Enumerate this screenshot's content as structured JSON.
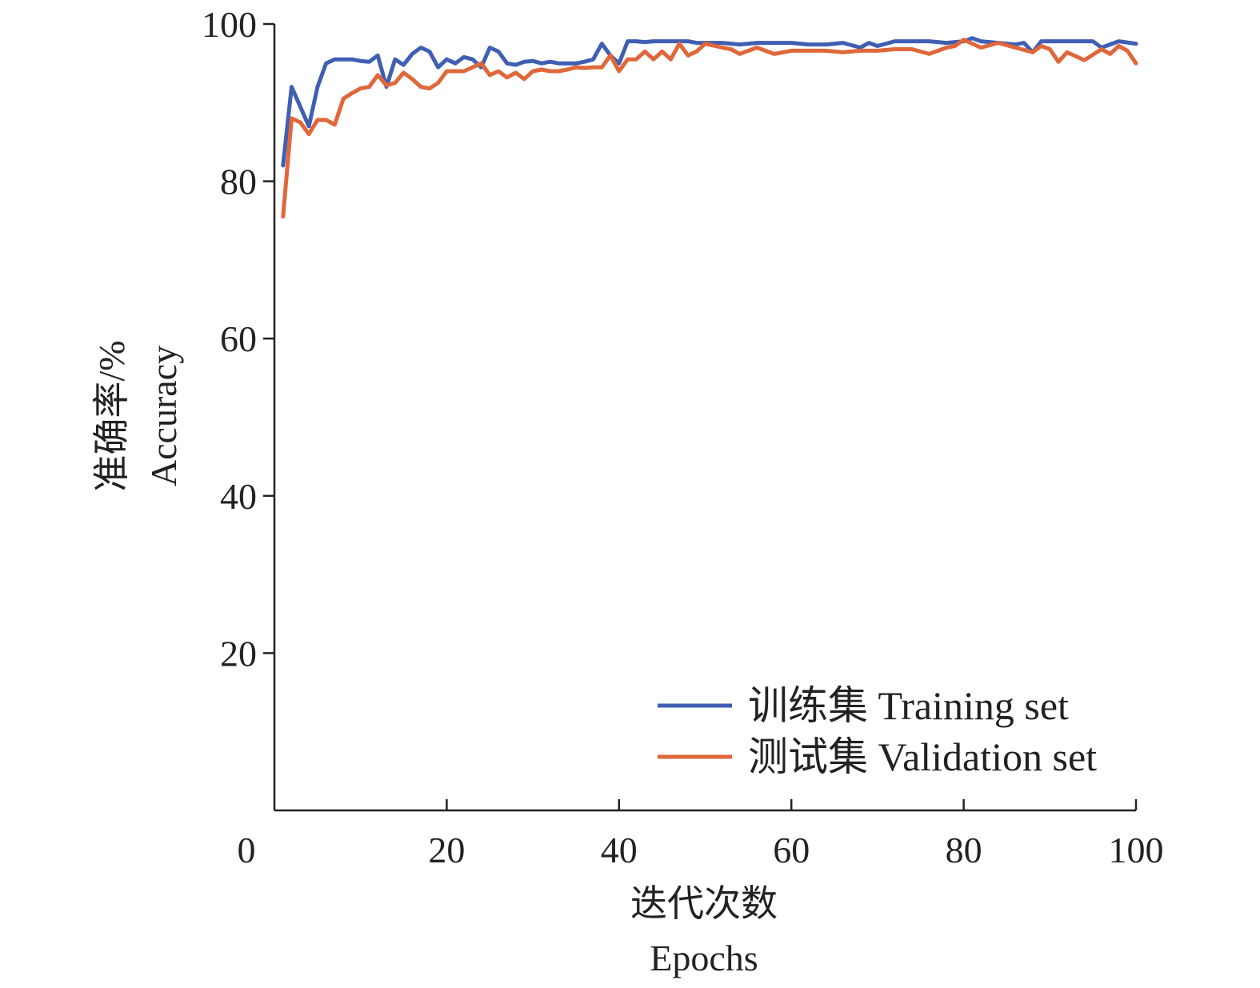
{
  "chart_data": {
    "type": "line",
    "title": "",
    "xlabel": [
      "迭代次数",
      "Epochs"
    ],
    "ylabel": [
      "准确率/%",
      "Accuracy"
    ],
    "xlim": [
      0,
      100
    ],
    "ylim": [
      0,
      100
    ],
    "xticks": [
      "0",
      "20",
      "40",
      "60",
      "80",
      "100"
    ],
    "yticks": [
      "20",
      "40",
      "60",
      "80",
      "100"
    ],
    "grid": false,
    "legend_position": "bottom-right",
    "series": [
      {
        "name": "训练集 Training set",
        "color": "#3f5fb3",
        "x": [
          1,
          2,
          3,
          4,
          5,
          6,
          7,
          8,
          9,
          10,
          11,
          12,
          13,
          14,
          15,
          16,
          17,
          18,
          19,
          20,
          21,
          22,
          23,
          24,
          25,
          26,
          27,
          28,
          29,
          30,
          31,
          32,
          33,
          34,
          35,
          36,
          37,
          38,
          39,
          40,
          41,
          42,
          43,
          44,
          45,
          46,
          47,
          48,
          49,
          50,
          52,
          54,
          56,
          58,
          60,
          62,
          64,
          66,
          68,
          69,
          70,
          72,
          74,
          76,
          78,
          80,
          81,
          82,
          84,
          86,
          87,
          88,
          89,
          90,
          92,
          94,
          95,
          96,
          98,
          100
        ],
        "values": [
          82,
          92,
          89.5,
          87,
          92,
          95,
          95.5,
          95.5,
          95.5,
          95.3,
          95.2,
          96,
          92,
          95.5,
          94.8,
          96.2,
          97,
          96.5,
          94.5,
          95.5,
          95,
          95.8,
          95.5,
          94.5,
          97,
          96.5,
          95,
          94.8,
          95.2,
          95.3,
          95,
          95.2,
          95,
          95,
          95,
          95.2,
          95.5,
          97.5,
          96,
          95,
          97.8,
          97.8,
          97.7,
          97.8,
          97.8,
          97.8,
          97.8,
          97.8,
          97.6,
          97.6,
          97.6,
          97.4,
          97.6,
          97.6,
          97.6,
          97.4,
          97.4,
          97.6,
          97.0,
          97.6,
          97.2,
          97.8,
          97.8,
          97.8,
          97.6,
          97.8,
          98.2,
          97.8,
          97.6,
          97.4,
          97.6,
          96.4,
          97.8,
          97.8,
          97.8,
          97.8,
          97.8,
          97.0,
          97.8,
          97.5
        ]
      },
      {
        "name": "测试集 Validation set",
        "color": "#e0673a",
        "x": [
          1,
          2,
          3,
          4,
          5,
          6,
          7,
          8,
          9,
          10,
          11,
          12,
          13,
          14,
          15,
          16,
          17,
          18,
          19,
          20,
          21,
          22,
          23,
          24,
          25,
          26,
          27,
          28,
          29,
          30,
          31,
          32,
          33,
          34,
          35,
          36,
          37,
          38,
          39,
          40,
          41,
          42,
          43,
          44,
          45,
          46,
          47,
          48,
          49,
          50,
          52,
          53,
          54,
          56,
          58,
          60,
          62,
          64,
          66,
          68,
          70,
          72,
          74,
          76,
          78,
          79,
          80,
          82,
          84,
          86,
          88,
          89,
          90,
          91,
          92,
          94,
          96,
          97,
          98,
          99,
          100
        ],
        "values": [
          75.5,
          88,
          87.5,
          86,
          87.8,
          87.8,
          87.2,
          90.5,
          91.2,
          91.8,
          92,
          93.5,
          92.2,
          92.5,
          93.8,
          93,
          92,
          91.8,
          92.5,
          94,
          94,
          94,
          94.5,
          95,
          93.5,
          94,
          93.2,
          93.8,
          93,
          94,
          94.2,
          94,
          94,
          94.2,
          94.5,
          94.4,
          94.5,
          94.5,
          96,
          94,
          95.5,
          95.5,
          96.5,
          95.5,
          96.5,
          95.5,
          97.5,
          96,
          96.5,
          97.5,
          97,
          96.8,
          96.2,
          97,
          96.2,
          96.6,
          96.6,
          96.6,
          96.4,
          96.6,
          96.6,
          96.8,
          96.8,
          96.2,
          97,
          97.2,
          98,
          97.0,
          97.6,
          97.0,
          96.4,
          97.2,
          96.8,
          95.2,
          96.4,
          95.4,
          96.8,
          96.2,
          97.2,
          96.6,
          95
        ]
      }
    ]
  }
}
